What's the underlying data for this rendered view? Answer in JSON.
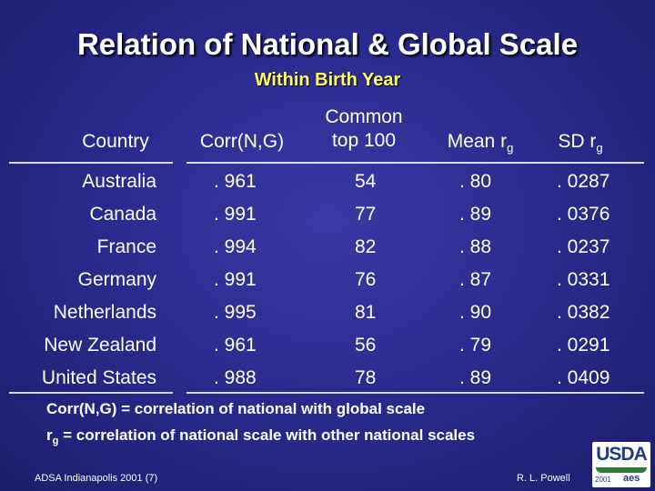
{
  "title": "Relation of National & Global Scale",
  "subtitle": "Within Birth Year",
  "headers": {
    "country": "Country",
    "corr": "Corr(N,G)",
    "top_line1": "Common",
    "top_line2": "top 100",
    "mean_base": "Mean r",
    "mean_sub": "g",
    "sd_base": "SD r",
    "sd_sub": "g"
  },
  "rows": [
    {
      "country": "Australia",
      "corr": ". 961",
      "top100": "54",
      "mean": ". 80",
      "sd": ". 0287"
    },
    {
      "country": "Canada",
      "corr": ". 991",
      "top100": "77",
      "mean": ". 89",
      "sd": ". 0376"
    },
    {
      "country": "France",
      "corr": ". 994",
      "top100": "82",
      "mean": ". 88",
      "sd": ". 0237"
    },
    {
      "country": "Germany",
      "corr": ". 991",
      "top100": "76",
      "mean": ". 87",
      "sd": ". 0331"
    },
    {
      "country": "Netherlands",
      "corr": ". 995",
      "top100": "81",
      "mean": ". 90",
      "sd": ". 0382"
    },
    {
      "country": "New Zealand",
      "corr": ". 961",
      "top100": "56",
      "mean": ". 79",
      "sd": ". 0291"
    },
    {
      "country": "United States",
      "corr": ". 988",
      "top100": "78",
      "mean": ". 89",
      "sd": ". 0409"
    }
  ],
  "notes": {
    "line1": "Corr(N,G) = correlation of national with global scale",
    "line2_base": "r",
    "line2_sub": "g",
    "line2_rest": " = correlation of national scale with other national scales"
  },
  "footer": {
    "left": "ADSA Indianapolis 2001 (7)",
    "right": "R. L. Powell"
  },
  "logo": {
    "text": "USDA",
    "year": "2001",
    "sub": "aes"
  },
  "colors": {
    "background": "#2b2b8f",
    "subtitle": "#ffff66",
    "text": "#ffffff"
  }
}
